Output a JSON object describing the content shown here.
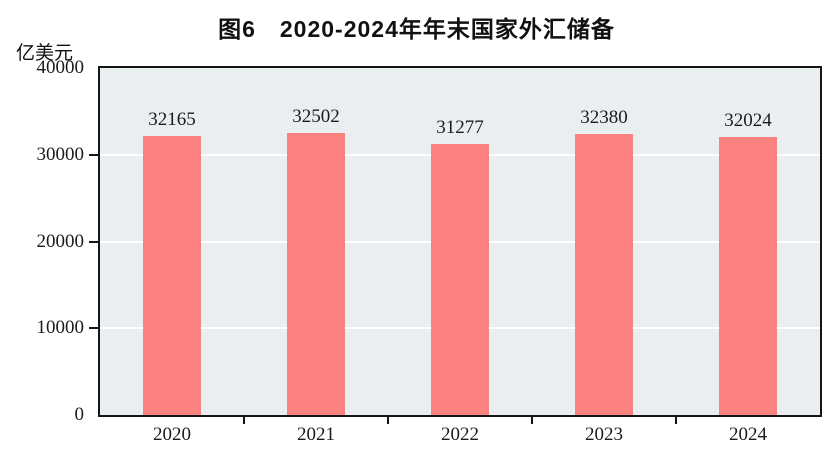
{
  "chart_data": {
    "type": "bar",
    "title": "图6　2020-2024年年末国家外汇储备",
    "unit_label": "亿美元",
    "categories": [
      "2020",
      "2021",
      "2022",
      "2023",
      "2024"
    ],
    "values": [
      32165,
      32502,
      31277,
      32380,
      32024
    ],
    "value_labels": [
      "32165",
      "32502",
      "31277",
      "32380",
      "32024"
    ],
    "xlabel": "",
    "ylabel": "亿美元",
    "ylim": [
      0,
      40000
    ],
    "yticks": [
      0,
      10000,
      20000,
      30000,
      40000
    ],
    "grid": "horizontal white gridlines at 10000, 20000, 30000 behind bars",
    "legend": "none",
    "colors": {
      "bar": "#fb8181",
      "plot_background": "#e9eff1",
      "gridline": "#ffffff",
      "axis_border": "#151515",
      "text": "#1b1b1b",
      "page_background": "#ffffff"
    }
  }
}
